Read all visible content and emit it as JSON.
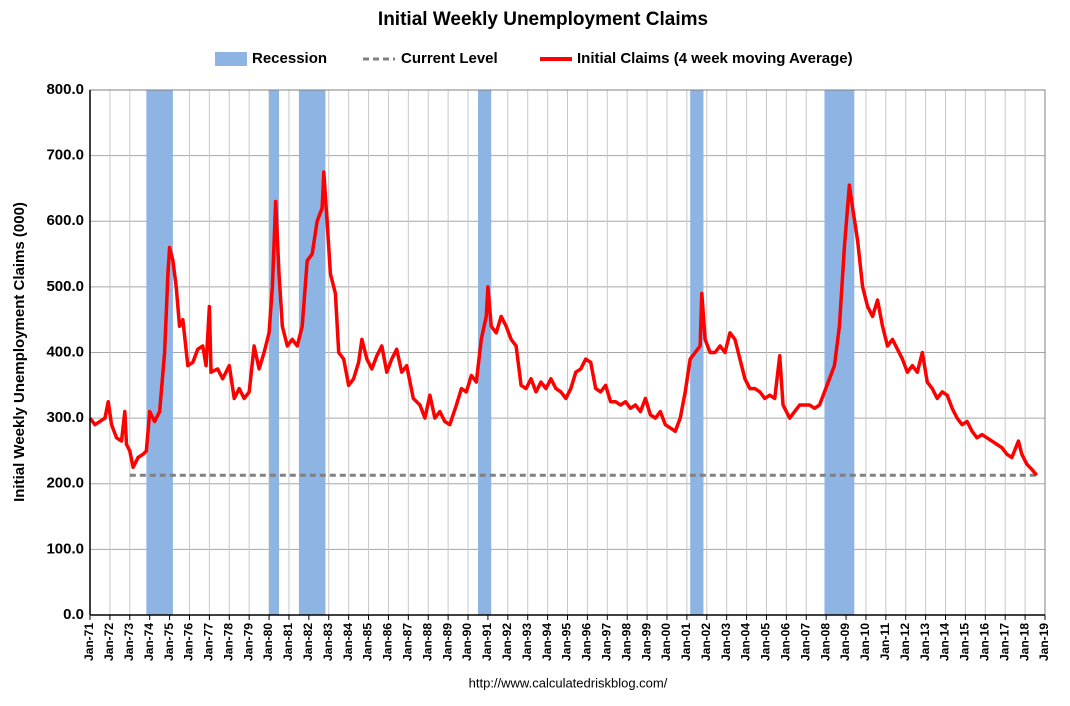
{
  "chart_data": {
    "type": "line",
    "title": "Initial Weekly Unemployment Claims",
    "ylabel": "Initial Weekly Unemployment Claims (000)",
    "source": "http://www.calculatedriskblog.com/",
    "grid": true,
    "legend": "top",
    "xlim": [
      "1971-01",
      "2019-01"
    ],
    "ylim": [
      0,
      800
    ],
    "yticks": [
      {
        "value": 0,
        "label": "0.0"
      },
      {
        "value": 100,
        "label": "100.0"
      },
      {
        "value": 200,
        "label": "200.0"
      },
      {
        "value": 300,
        "label": "300.0"
      },
      {
        "value": 400,
        "label": "400.0"
      },
      {
        "value": 500,
        "label": "500.0"
      },
      {
        "value": 600,
        "label": "600.0"
      },
      {
        "value": 700,
        "label": "700.0"
      },
      {
        "value": 800,
        "label": "800.0"
      }
    ],
    "xticks": [
      {
        "value": "1971-01",
        "label": "Jan-71"
      },
      {
        "value": "1972-01",
        "label": "Jan-72"
      },
      {
        "value": "1973-01",
        "label": "Jan-73"
      },
      {
        "value": "1974-01",
        "label": "Jan-74"
      },
      {
        "value": "1975-01",
        "label": "Jan-75"
      },
      {
        "value": "1976-01",
        "label": "Jan-76"
      },
      {
        "value": "1977-01",
        "label": "Jan-77"
      },
      {
        "value": "1978-01",
        "label": "Jan-78"
      },
      {
        "value": "1979-01",
        "label": "Jan-79"
      },
      {
        "value": "1980-01",
        "label": "Jan-80"
      },
      {
        "value": "1981-01",
        "label": "Jan-81"
      },
      {
        "value": "1982-01",
        "label": "Jan-82"
      },
      {
        "value": "1983-01",
        "label": "Jan-83"
      },
      {
        "value": "1984-01",
        "label": "Jan-84"
      },
      {
        "value": "1985-01",
        "label": "Jan-85"
      },
      {
        "value": "1986-01",
        "label": "Jan-86"
      },
      {
        "value": "1987-01",
        "label": "Jan-87"
      },
      {
        "value": "1988-01",
        "label": "Jan-88"
      },
      {
        "value": "1989-01",
        "label": "Jan-89"
      },
      {
        "value": "1990-01",
        "label": "Jan-90"
      },
      {
        "value": "1991-01",
        "label": "Jan-91"
      },
      {
        "value": "1992-01",
        "label": "Jan-92"
      },
      {
        "value": "1993-01",
        "label": "Jan-93"
      },
      {
        "value": "1994-01",
        "label": "Jan-94"
      },
      {
        "value": "1995-01",
        "label": "Jan-95"
      },
      {
        "value": "1996-01",
        "label": "Jan-96"
      },
      {
        "value": "1997-01",
        "label": "Jan-97"
      },
      {
        "value": "1998-01",
        "label": "Jan-98"
      },
      {
        "value": "1999-01",
        "label": "Jan-99"
      },
      {
        "value": "2000-01",
        "label": "Jan-00"
      },
      {
        "value": "2001-01",
        "label": "Jan-01"
      },
      {
        "value": "2002-01",
        "label": "Jan-02"
      },
      {
        "value": "2003-01",
        "label": "Jan-03"
      },
      {
        "value": "2004-01",
        "label": "Jan-04"
      },
      {
        "value": "2005-01",
        "label": "Jan-05"
      },
      {
        "value": "2006-01",
        "label": "Jan-06"
      },
      {
        "value": "2007-01",
        "label": "Jan-07"
      },
      {
        "value": "2008-01",
        "label": "Jan-08"
      },
      {
        "value": "2009-01",
        "label": "Jan-09"
      },
      {
        "value": "2010-01",
        "label": "Jan-10"
      },
      {
        "value": "2011-01",
        "label": "Jan-11"
      },
      {
        "value": "2012-01",
        "label": "Jan-12"
      },
      {
        "value": "2013-01",
        "label": "Jan-13"
      },
      {
        "value": "2014-01",
        "label": "Jan-14"
      },
      {
        "value": "2015-01",
        "label": "Jan-15"
      },
      {
        "value": "2016-01",
        "label": "Jan-16"
      },
      {
        "value": "2017-01",
        "label": "Jan-17"
      },
      {
        "value": "2018-01",
        "label": "Jan-18"
      },
      {
        "value": "2019-01",
        "label": "Jan-19"
      }
    ],
    "recessions": {
      "name": "Recession",
      "color": "#8eb4e3",
      "spans": [
        [
          "1973-11",
          "1975-03"
        ],
        [
          "1980-01",
          "1980-07"
        ],
        [
          "1981-07",
          "1982-11"
        ],
        [
          "1990-07",
          "1991-03"
        ],
        [
          "2001-03",
          "2001-11"
        ],
        [
          "2007-12",
          "2009-06"
        ]
      ]
    },
    "reference_line": {
      "name": "Current Level",
      "color": "#808080",
      "value": 213,
      "x": [
        "1973-01",
        "2018-08"
      ]
    },
    "series": [
      {
        "name": "Initial Claims (4 week moving Average)",
        "color": "#ff0000",
        "x": [
          "1971-01",
          "1971-04",
          "1971-07",
          "1971-10",
          "1971-12",
          "1972-02",
          "1972-05",
          "1972-08",
          "1972-10",
          "1972-11",
          "1973-01",
          "1973-03",
          "1973-06",
          "1973-09",
          "1973-11",
          "1974-01",
          "1974-04",
          "1974-07",
          "1974-10",
          "1974-12",
          "1975-01",
          "1975-03",
          "1975-05",
          "1975-07",
          "1975-09",
          "1975-12",
          "1976-03",
          "1976-06",
          "1976-09",
          "1976-11",
          "1977-01",
          "1977-02",
          "1977-06",
          "1977-09",
          "1978-01",
          "1978-04",
          "1978-07",
          "1978-10",
          "1979-01",
          "1979-04",
          "1979-07",
          "1979-10",
          "1980-01",
          "1980-03",
          "1980-05",
          "1980-07",
          "1980-09",
          "1980-12",
          "1981-03",
          "1981-06",
          "1981-09",
          "1981-12",
          "1982-03",
          "1982-06",
          "1982-09",
          "1982-10",
          "1982-12",
          "1983-02",
          "1983-05",
          "1983-07",
          "1983-10",
          "1984-01",
          "1984-04",
          "1984-07",
          "1984-09",
          "1984-12",
          "1985-03",
          "1985-06",
          "1985-09",
          "1985-12",
          "1986-03",
          "1986-06",
          "1986-09",
          "1986-12",
          "1987-04",
          "1987-08",
          "1987-11",
          "1988-02",
          "1988-05",
          "1988-08",
          "1988-11",
          "1989-02",
          "1989-06",
          "1989-09",
          "1989-12",
          "1990-03",
          "1990-06",
          "1990-09",
          "1990-12",
          "1991-01",
          "1991-03",
          "1991-06",
          "1991-09",
          "1991-12",
          "1992-03",
          "1992-06",
          "1992-09",
          "1992-12",
          "1993-03",
          "1993-06",
          "1993-09",
          "1993-12",
          "1994-03",
          "1994-06",
          "1994-09",
          "1994-12",
          "1995-03",
          "1995-06",
          "1995-09",
          "1995-12",
          "1996-03",
          "1996-06",
          "1996-09",
          "1996-12",
          "1997-03",
          "1997-06",
          "1997-09",
          "1997-12",
          "1998-03",
          "1998-06",
          "1998-09",
          "1998-12",
          "1999-03",
          "1999-06",
          "1999-09",
          "1999-12",
          "2000-03",
          "2000-06",
          "2000-09",
          "2000-12",
          "2001-03",
          "2001-06",
          "2001-09",
          "2001-10",
          "2001-12",
          "2002-03",
          "2002-06",
          "2002-09",
          "2002-12",
          "2003-03",
          "2003-06",
          "2003-09",
          "2003-12",
          "2004-03",
          "2004-06",
          "2004-09",
          "2004-12",
          "2005-03",
          "2005-06",
          "2005-09",
          "2005-11",
          "2006-03",
          "2006-06",
          "2006-09",
          "2006-12",
          "2007-03",
          "2007-06",
          "2007-09",
          "2007-12",
          "2008-03",
          "2008-06",
          "2008-09",
          "2008-12",
          "2009-03",
          "2009-05",
          "2009-08",
          "2009-11",
          "2010-02",
          "2010-05",
          "2010-08",
          "2010-11",
          "2011-02",
          "2011-05",
          "2011-08",
          "2011-11",
          "2012-02",
          "2012-05",
          "2012-08",
          "2012-11",
          "2013-02",
          "2013-05",
          "2013-08",
          "2013-11",
          "2014-02",
          "2014-05",
          "2014-08",
          "2014-11",
          "2015-02",
          "2015-05",
          "2015-08",
          "2015-11",
          "2016-02",
          "2016-05",
          "2016-08",
          "2016-11",
          "2017-02",
          "2017-05",
          "2017-09",
          "2017-11",
          "2018-02",
          "2018-05",
          "2018-08"
        ],
        "values": [
          300,
          290,
          295,
          300,
          325,
          290,
          270,
          265,
          310,
          260,
          250,
          225,
          240,
          245,
          250,
          310,
          295,
          310,
          400,
          520,
          560,
          540,
          500,
          440,
          450,
          380,
          385,
          405,
          410,
          380,
          470,
          370,
          375,
          360,
          380,
          330,
          345,
          330,
          340,
          410,
          375,
          400,
          430,
          500,
          630,
          520,
          440,
          410,
          420,
          410,
          440,
          540,
          550,
          600,
          620,
          675,
          600,
          520,
          490,
          400,
          390,
          350,
          360,
          385,
          420,
          390,
          375,
          395,
          410,
          370,
          390,
          405,
          370,
          380,
          330,
          320,
          300,
          335,
          300,
          310,
          295,
          290,
          320,
          345,
          340,
          365,
          355,
          420,
          455,
          500,
          440,
          430,
          455,
          440,
          420,
          410,
          350,
          345,
          360,
          340,
          355,
          345,
          360,
          345,
          340,
          330,
          345,
          370,
          375,
          390,
          385,
          345,
          340,
          350,
          325,
          325,
          320,
          325,
          315,
          320,
          310,
          330,
          305,
          300,
          310,
          290,
          285,
          280,
          300,
          340,
          390,
          400,
          410,
          490,
          420,
          400,
          400,
          410,
          400,
          430,
          420,
          390,
          360,
          345,
          345,
          340,
          330,
          335,
          330,
          395,
          320,
          300,
          310,
          320,
          320,
          320,
          315,
          320,
          340,
          360,
          380,
          440,
          560,
          655,
          620,
          570,
          500,
          470,
          455,
          480,
          440,
          410,
          420,
          405,
          390,
          370,
          380,
          370,
          400,
          355,
          345,
          330,
          340,
          335,
          315,
          300,
          290,
          295,
          280,
          270,
          275,
          270,
          265,
          260,
          255,
          245,
          240,
          265,
          245,
          230,
          222,
          213
        ]
      }
    ]
  }
}
